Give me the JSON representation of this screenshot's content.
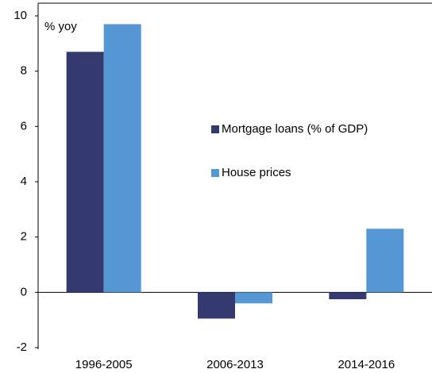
{
  "chart_data": {
    "type": "bar",
    "y_label": "% yoy",
    "categories": [
      "1996-2005",
      "2006-2013",
      "2014-2016"
    ],
    "series": [
      {
        "name": "Mortgage loans (% of GDP)",
        "color": "#343a70",
        "values": [
          8.7,
          -0.95,
          -0.25
        ]
      },
      {
        "name": "House prices",
        "color": "#5596d4",
        "values": [
          9.7,
          -0.4,
          2.3
        ]
      }
    ],
    "ylim": [
      -2,
      10
    ],
    "yticks": [
      -2,
      0,
      2,
      4,
      6,
      8,
      10
    ],
    "legend": "center"
  }
}
